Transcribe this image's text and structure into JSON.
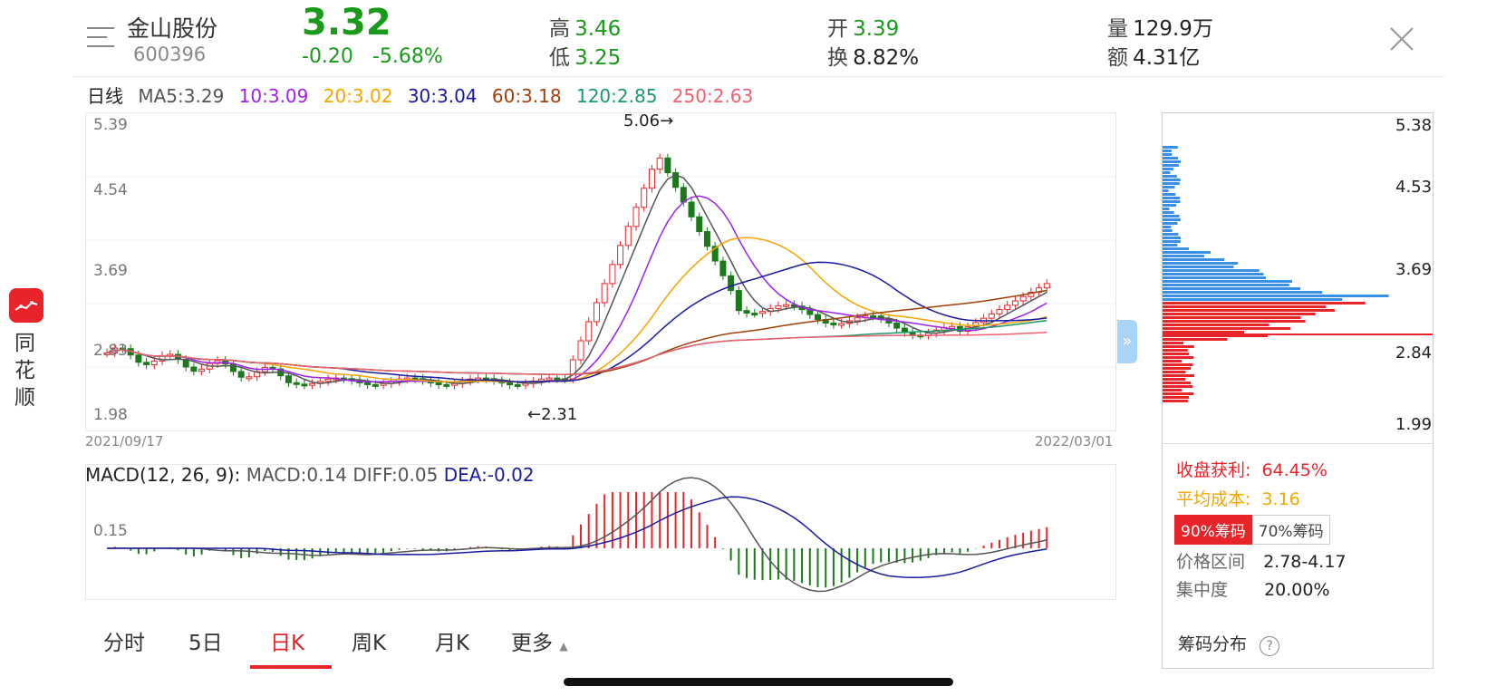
{
  "header": {
    "stock_name": "金山股份",
    "stock_code": "600396",
    "price": "3.32",
    "change": "-0.20",
    "change_pct": "-5.68%",
    "high_label": "高",
    "high": "3.46",
    "low_label": "低",
    "low": "3.25",
    "open_label": "开",
    "open": "3.39",
    "turnover_label": "换",
    "turnover": "8.82%",
    "volume_label": "量",
    "volume": "129.9万",
    "amount_label": "额",
    "amount": "4.31亿"
  },
  "ma": {
    "period": "日线",
    "ma5": "MA5:3.29",
    "ma10": "10:3.09",
    "ma20": "20:3.02",
    "ma30": "30:3.04",
    "ma60": "60:3.18",
    "ma120": "120:2.85",
    "ma250": "250:2.63"
  },
  "colors": {
    "ma5": "#555555",
    "ma10": "#a020f0",
    "ma20": "#f5a500",
    "ma30": "#1a1aa0",
    "ma60": "#a0400a",
    "ma120": "#1a9a6a",
    "ma250": "#f06070",
    "up": "#e8242b",
    "down": "#1a7a1a",
    "chip_profit": "#e8242b",
    "chip_loss": "#3a8ee6"
  },
  "kline": {
    "y_labels": [
      "5.39",
      "4.54",
      "3.69",
      "2.83",
      "1.98"
    ],
    "start_date": "2021/09/17",
    "end_date": "2022/03/01",
    "max_marker": "5.06→",
    "min_marker": "←2.31"
  },
  "macd": {
    "title": "MACD(12, 26, 9):",
    "macd": "MACD:0.14",
    "diff": "DIFF:0.05",
    "dea": "DEA:-0.02",
    "level": "0.15"
  },
  "tabs": [
    "分时",
    "5日",
    "日K",
    "周K",
    "月K",
    "更多"
  ],
  "active_tab": 2,
  "sidebar": {
    "app_name": "同花顺"
  },
  "chips": {
    "prices": [
      "5.38",
      "4.53",
      "3.69",
      "2.84",
      "1.99"
    ],
    "profit_label": "收盘获利:",
    "profit": "64.45%",
    "avg_cost_label": "平均成本:",
    "avg_cost": "3.16",
    "toggle_90": "90%筹码",
    "toggle_70": "70%筹码",
    "range_label": "价格区间",
    "range": "2.78-4.17",
    "concentration_label": "集中度",
    "concentration": "20.00%",
    "footer": "筹码分布"
  }
}
